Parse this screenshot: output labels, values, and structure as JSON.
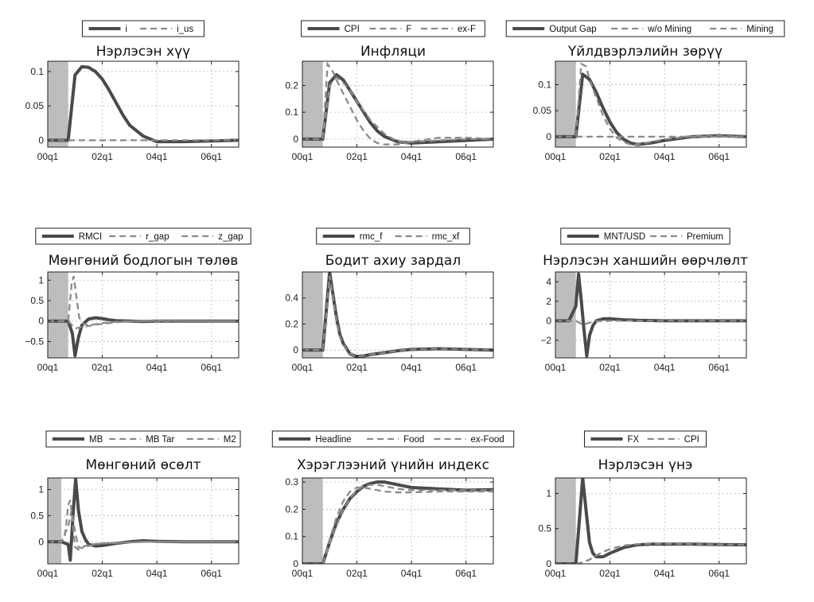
{
  "chart_data": [
    {
      "type": "line",
      "title": "Нэрлэсэн хүү",
      "x_ticks": [
        "00q1",
        "02q1",
        "04q1",
        "06q1"
      ],
      "ylim": [
        -0.01,
        0.115
      ],
      "y_ticks": [
        {
          "v": 0,
          "label": "0"
        },
        {
          "v": 0.05,
          "label": "0.05"
        },
        {
          "v": 0.1,
          "label": "0.1"
        }
      ],
      "shock_period": [
        0,
        3
      ],
      "grid": true,
      "legend_position": "top-center",
      "series": [
        {
          "name": "i",
          "style": "solid",
          "x": [
            0,
            3,
            4,
            5,
            6,
            7,
            8,
            9,
            10,
            11,
            12,
            14,
            16,
            20,
            24,
            28
          ],
          "y": [
            0,
            0,
            0.095,
            0.107,
            0.106,
            0.1,
            0.089,
            0.073,
            0.055,
            0.037,
            0.022,
            0.006,
            -0.002,
            -0.002,
            -0.001,
            0
          ]
        },
        {
          "name": "i_us",
          "style": "dashed",
          "x": [
            0,
            28
          ],
          "y": [
            0,
            0
          ]
        }
      ]
    },
    {
      "type": "line",
      "title": "Инфляци",
      "x_ticks": [
        "00q1",
        "02q1",
        "04q1",
        "06q1"
      ],
      "ylim": [
        -0.03,
        0.29
      ],
      "y_ticks": [
        {
          "v": 0,
          "label": "0"
        },
        {
          "v": 0.1,
          "label": "0.1"
        },
        {
          "v": 0.2,
          "label": "0.2"
        }
      ],
      "shock_period": [
        0,
        3
      ],
      "grid": true,
      "legend_position": "top-center",
      "series": [
        {
          "name": "CPI",
          "style": "solid",
          "x": [
            0,
            3,
            4,
            5,
            6,
            7,
            8,
            9,
            10,
            11,
            12,
            14,
            16,
            20,
            24,
            28
          ],
          "y": [
            0,
            0,
            0.21,
            0.24,
            0.22,
            0.18,
            0.14,
            0.1,
            0.06,
            0.03,
            0.01,
            -0.01,
            -0.015,
            -0.01,
            -0.005,
            0
          ]
        },
        {
          "name": "F",
          "style": "dashed",
          "x": [
            0,
            3,
            3.7,
            4.5,
            5,
            6,
            7,
            8,
            9,
            10,
            11,
            12,
            14,
            16,
            20,
            24,
            28
          ],
          "y": [
            0,
            0,
            0.28,
            0.25,
            0.22,
            0.17,
            0.12,
            0.07,
            0.03,
            0,
            -0.015,
            -0.02,
            -0.02,
            -0.01,
            0.005,
            0.005,
            0
          ]
        },
        {
          "name": "ex-F",
          "style": "dashed",
          "x": [
            0,
            3,
            4,
            5,
            6,
            7,
            8,
            10,
            12,
            14,
            16,
            20,
            24,
            28
          ],
          "y": [
            0,
            0,
            0.2,
            0.23,
            0.21,
            0.18,
            0.14,
            0.07,
            0.02,
            -0.01,
            -0.01,
            -0.005,
            0,
            0
          ]
        }
      ]
    },
    {
      "type": "line",
      "title": "Үйлдвэрлэлийн зөрүү",
      "x_ticks": [
        "00q1",
        "02q1",
        "04q1",
        "06q1"
      ],
      "ylim": [
        -0.02,
        0.145
      ],
      "y_ticks": [
        {
          "v": 0,
          "label": "0"
        },
        {
          "v": 0.05,
          "label": "0.05"
        },
        {
          "v": 0.1,
          "label": "0.1"
        }
      ],
      "shock_period": [
        0,
        3
      ],
      "grid": true,
      "legend_position": "top-center",
      "series": [
        {
          "name": "Output Gap",
          "style": "solid",
          "x": [
            0,
            3,
            4,
            5,
            6,
            7,
            8,
            9,
            10,
            11,
            12,
            14,
            16,
            20,
            24,
            28
          ],
          "y": [
            0,
            0,
            0.12,
            0.11,
            0.085,
            0.055,
            0.028,
            0.008,
            -0.005,
            -0.012,
            -0.015,
            -0.012,
            -0.007,
            0,
            0.002,
            0
          ]
        },
        {
          "name": "w/o Mining",
          "style": "dashed",
          "x": [
            0,
            3,
            3.8,
            4.5,
            5,
            6,
            7,
            8,
            9,
            10,
            11,
            12,
            14,
            16,
            20,
            24,
            28
          ],
          "y": [
            0,
            0,
            0.14,
            0.135,
            0.11,
            0.075,
            0.04,
            0.015,
            -0.002,
            -0.01,
            -0.015,
            -0.015,
            -0.01,
            -0.005,
            0.001,
            0.002,
            0
          ]
        },
        {
          "name": "Mining",
          "style": "dashed",
          "x": [
            0,
            28
          ],
          "y": [
            0,
            0
          ]
        }
      ]
    },
    {
      "type": "line",
      "title": "Мөнгөний бодлогын төлөв",
      "x_ticks": [
        "00q1",
        "02q1",
        "04q1",
        "06q1"
      ],
      "ylim": [
        -0.9,
        1.2
      ],
      "y_ticks": [
        {
          "v": -0.5,
          "label": "−0.5"
        },
        {
          "v": 0,
          "label": "0"
        },
        {
          "v": 0.5,
          "label": "0.5"
        },
        {
          "v": 1,
          "label": "1"
        }
      ],
      "shock_period": [
        0,
        3
      ],
      "grid": true,
      "legend_position": "top-center",
      "series": [
        {
          "name": "RMCI",
          "style": "solid",
          "x": [
            0,
            3,
            3.6,
            4,
            4.5,
            5,
            6,
            7,
            8,
            9,
            10,
            12,
            14,
            16,
            20,
            24,
            28
          ],
          "y": [
            0,
            0,
            -0.3,
            -0.85,
            -0.4,
            -0.1,
            0.05,
            0.08,
            0.06,
            0.03,
            0.01,
            0,
            -0.01,
            0,
            0,
            0,
            0
          ]
        },
        {
          "name": "r_gap",
          "style": "dashed",
          "x": [
            0,
            3,
            4,
            5,
            6,
            7,
            8,
            9,
            10,
            12,
            14,
            16,
            20,
            24,
            28
          ],
          "y": [
            0,
            0,
            -0.18,
            -0.15,
            -0.12,
            -0.09,
            -0.07,
            -0.05,
            -0.03,
            -0.01,
            0,
            0.01,
            0.005,
            0,
            0
          ]
        },
        {
          "name": "z_gap",
          "style": "dashed",
          "x": [
            0,
            3,
            3.5,
            3.8,
            4.2,
            4.6,
            5,
            6,
            7,
            8,
            10,
            12,
            16,
            20,
            24,
            28
          ],
          "y": [
            0,
            0,
            0.9,
            1.1,
            0.6,
            0.1,
            -0.05,
            -0.1,
            -0.08,
            -0.05,
            -0.02,
            0,
            0,
            0,
            0,
            0
          ]
        }
      ]
    },
    {
      "type": "line",
      "title": "Бодит ахиу зардал",
      "x_ticks": [
        "00q1",
        "02q1",
        "04q1",
        "06q1"
      ],
      "ylim": [
        -0.06,
        0.6
      ],
      "y_ticks": [
        {
          "v": 0,
          "label": "0"
        },
        {
          "v": 0.2,
          "label": "0.2"
        },
        {
          "v": 0.4,
          "label": "0.4"
        }
      ],
      "shock_period": [
        0,
        3
      ],
      "grid": true,
      "legend_position": "top-center",
      "series": [
        {
          "name": "rmc_f",
          "style": "solid",
          "x": [
            0,
            3,
            3.5,
            4,
            4.5,
            5,
            5.5,
            6,
            7,
            8,
            9,
            10,
            12,
            14,
            16,
            20,
            24,
            28
          ],
          "y": [
            0,
            0,
            0.3,
            0.6,
            0.42,
            0.25,
            0.12,
            0.05,
            -0.03,
            -0.05,
            -0.045,
            -0.035,
            -0.02,
            -0.005,
            0.005,
            0.01,
            0.005,
            0
          ]
        },
        {
          "name": "rmc_xf",
          "style": "dashed",
          "x": [
            0,
            3,
            3.5,
            4,
            4.5,
            5,
            5.5,
            6,
            7,
            8,
            9,
            10,
            12,
            14,
            16,
            20,
            24,
            28
          ],
          "y": [
            0,
            0,
            0.28,
            0.57,
            0.4,
            0.23,
            0.1,
            0.04,
            -0.03,
            -0.05,
            -0.045,
            -0.035,
            -0.02,
            -0.005,
            0.005,
            0.01,
            0.005,
            0
          ]
        }
      ]
    },
    {
      "type": "line",
      "title": "Нэрлэсэн ханшийн өөрчлөлт",
      "x_ticks": [
        "00q1",
        "02q1",
        "04q1",
        "06q1"
      ],
      "ylim": [
        -3.8,
        5
      ],
      "y_ticks": [
        {
          "v": -2,
          "label": "−2"
        },
        {
          "v": 0,
          "label": "0"
        },
        {
          "v": 2,
          "label": "2"
        },
        {
          "v": 4,
          "label": "4"
        }
      ],
      "shock_period": [
        0,
        3
      ],
      "grid": true,
      "legend_position": "top-center",
      "series": [
        {
          "name": "MNT/USD",
          "style": "solid",
          "x": [
            0,
            2,
            3,
            3.4,
            3.8,
            4.2,
            4.6,
            5,
            5.5,
            6,
            7,
            8,
            10,
            12,
            16,
            20,
            24,
            28
          ],
          "y": [
            0,
            0,
            1.5,
            4.8,
            2,
            -1,
            -3.6,
            -1.5,
            -0.5,
            0,
            0.2,
            0.2,
            0.1,
            0.05,
            0,
            0,
            0,
            0
          ]
        },
        {
          "name": "Premium",
          "style": "dashed",
          "x": [
            0,
            3,
            4,
            5,
            6,
            8,
            10,
            12,
            16,
            20,
            24,
            28
          ],
          "y": [
            0,
            0,
            -0.4,
            -0.2,
            -0.05,
            0,
            0,
            0,
            0,
            0,
            0,
            0
          ]
        }
      ]
    },
    {
      "type": "line",
      "title": "Мөнгөний өсөлт",
      "x_ticks": [
        "00q1",
        "02q1",
        "04q1",
        "06q1"
      ],
      "ylim": [
        -0.42,
        1.22
      ],
      "y_ticks": [
        {
          "v": 0,
          "label": "0"
        },
        {
          "v": 0.5,
          "label": "0.5"
        },
        {
          "v": 1,
          "label": "1"
        }
      ],
      "shock_period": [
        0,
        2
      ],
      "grid": true,
      "legend_position": "top-center",
      "series": [
        {
          "name": "MB",
          "style": "solid",
          "x": [
            0,
            2,
            3,
            3.3,
            3.7,
            4.1,
            4.5,
            5,
            5.5,
            6,
            7,
            8,
            10,
            12,
            14,
            16,
            20,
            24,
            28
          ],
          "y": [
            0,
            0,
            -0.05,
            -0.35,
            0.5,
            1.2,
            0.6,
            0.2,
            0.05,
            -0.05,
            -0.08,
            -0.07,
            -0.03,
            0,
            0.02,
            0.01,
            0,
            0,
            0
          ]
        },
        {
          "name": "MB Tar",
          "style": "dashed",
          "x": [
            0,
            2,
            2.5,
            3,
            3.3,
            3.7,
            4,
            4.5,
            5,
            6,
            7,
            8,
            10,
            12,
            14,
            16,
            20,
            24,
            28
          ],
          "y": [
            0,
            0,
            0.1,
            0.7,
            0.8,
            0.3,
            -0.1,
            -0.15,
            -0.1,
            -0.06,
            -0.04,
            -0.03,
            -0.02,
            -0.01,
            0,
            0,
            0,
            0,
            0
          ]
        },
        {
          "name": "M2",
          "style": "dashed",
          "x": [
            0,
            2,
            3,
            3.5,
            4,
            4.5,
            5,
            6,
            7,
            8,
            10,
            12,
            14,
            16,
            20,
            24,
            28
          ],
          "y": [
            0,
            0,
            0.3,
            0.6,
            0.2,
            -0.1,
            -0.12,
            -0.08,
            -0.05,
            -0.03,
            -0.02,
            -0.01,
            0,
            0,
            0,
            0,
            0
          ]
        }
      ]
    },
    {
      "type": "line",
      "title": "Хэрэглээний үнийн индекс",
      "x_ticks": [
        "00q1",
        "02q1",
        "04q1",
        "06q1"
      ],
      "ylim": [
        0,
        0.315
      ],
      "y_ticks": [
        {
          "v": 0,
          "label": "0"
        },
        {
          "v": 0.1,
          "label": "0.1"
        },
        {
          "v": 0.2,
          "label": "0.2"
        },
        {
          "v": 0.3,
          "label": "0.3"
        }
      ],
      "shock_period": [
        0,
        3
      ],
      "grid": true,
      "legend_position": "top-center",
      "series": [
        {
          "name": "Headline",
          "style": "solid",
          "x": [
            0,
            3,
            4,
            5,
            6,
            7,
            8,
            9,
            10,
            11,
            12,
            14,
            16,
            20,
            24,
            28
          ],
          "y": [
            0,
            0,
            0.08,
            0.15,
            0.2,
            0.24,
            0.265,
            0.285,
            0.295,
            0.3,
            0.3,
            0.29,
            0.28,
            0.275,
            0.27,
            0.272
          ]
        },
        {
          "name": "Food",
          "style": "dashed",
          "x": [
            0,
            3,
            4,
            5,
            6,
            7,
            8,
            9,
            10,
            11,
            12,
            14,
            16,
            20,
            24,
            28
          ],
          "y": [
            0,
            0,
            0.07,
            0.14,
            0.2,
            0.24,
            0.27,
            0.285,
            0.29,
            0.29,
            0.285,
            0.275,
            0.27,
            0.27,
            0.27,
            0.27
          ]
        },
        {
          "name": "ex-Food",
          "style": "dashed",
          "x": [
            0,
            3,
            4,
            5,
            6,
            7,
            8,
            9,
            10,
            11,
            12,
            14,
            16,
            20,
            24,
            28
          ],
          "y": [
            0,
            0,
            0.09,
            0.17,
            0.23,
            0.265,
            0.28,
            0.28,
            0.275,
            0.27,
            0.265,
            0.262,
            0.262,
            0.265,
            0.265,
            0.265
          ]
        }
      ]
    },
    {
      "type": "line",
      "title": "Нэрлэсэн үнэ",
      "x_ticks": [
        "00q1",
        "02q1",
        "04q1",
        "06q1"
      ],
      "ylim": [
        0,
        1.22
      ],
      "y_ticks": [
        {
          "v": 0,
          "label": "0"
        },
        {
          "v": 0.5,
          "label": "0.5"
        },
        {
          "v": 1,
          "label": "1"
        }
      ],
      "shock_period": [
        0,
        3
      ],
      "grid": true,
      "legend_position": "top-center",
      "series": [
        {
          "name": "FX",
          "style": "solid",
          "x": [
            0,
            3,
            3.5,
            4,
            4.5,
            5,
            5.5,
            6,
            7,
            8,
            10,
            12,
            14,
            16,
            20,
            24,
            28
          ],
          "y": [
            0,
            0,
            0.6,
            1.22,
            0.75,
            0.3,
            0.15,
            0.1,
            0.1,
            0.15,
            0.23,
            0.27,
            0.28,
            0.28,
            0.28,
            0.275,
            0.27
          ]
        },
        {
          "name": "CPI",
          "style": "dashed",
          "x": [
            0,
            3,
            4,
            5,
            6,
            7,
            8,
            10,
            12,
            14,
            16,
            20,
            24,
            28
          ],
          "y": [
            0,
            0,
            0.02,
            0.06,
            0.12,
            0.17,
            0.21,
            0.26,
            0.28,
            0.285,
            0.285,
            0.28,
            0.275,
            0.27
          ]
        }
      ]
    }
  ]
}
